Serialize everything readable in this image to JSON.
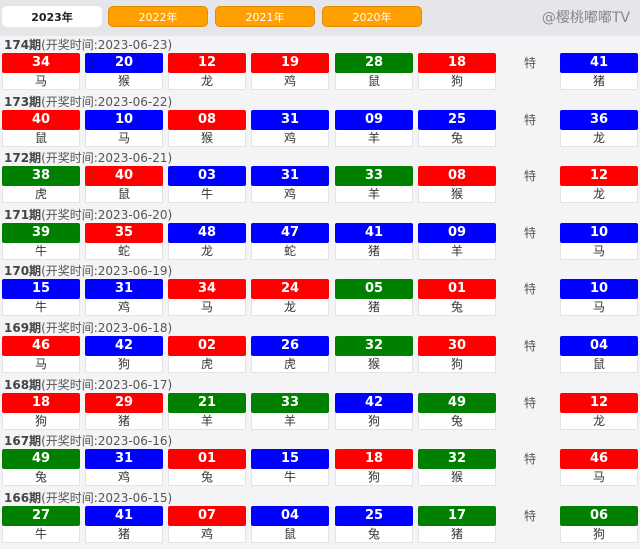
{
  "tabs": [
    "2023年",
    "2022年",
    "2021年",
    "2020年"
  ],
  "active_tab": 0,
  "special_label": "特",
  "colors": {
    "r": "#ff0000",
    "b": "#0000ff",
    "g": "#008000"
  },
  "draws": [
    {
      "issue": "174期",
      "time": "(开奖时间:2023-06-23)",
      "balls": [
        [
          "34",
          "r",
          "马"
        ],
        [
          "20",
          "b",
          "猴"
        ],
        [
          "12",
          "r",
          "龙"
        ],
        [
          "19",
          "r",
          "鸡"
        ],
        [
          "28",
          "g",
          "鼠"
        ],
        [
          "18",
          "r",
          "狗"
        ]
      ],
      "special": [
        "41",
        "b",
        "猪"
      ]
    },
    {
      "issue": "173期",
      "time": "(开奖时间:2023-06-22)",
      "balls": [
        [
          "40",
          "r",
          "鼠"
        ],
        [
          "10",
          "b",
          "马"
        ],
        [
          "08",
          "r",
          "猴"
        ],
        [
          "31",
          "b",
          "鸡"
        ],
        [
          "09",
          "b",
          "羊"
        ],
        [
          "25",
          "b",
          "兔"
        ]
      ],
      "special": [
        "36",
        "b",
        "龙"
      ]
    },
    {
      "issue": "172期",
      "time": "(开奖时间:2023-06-21)",
      "balls": [
        [
          "38",
          "g",
          "虎"
        ],
        [
          "40",
          "r",
          "鼠"
        ],
        [
          "03",
          "b",
          "牛"
        ],
        [
          "31",
          "b",
          "鸡"
        ],
        [
          "33",
          "g",
          "羊"
        ],
        [
          "08",
          "r",
          "猴"
        ]
      ],
      "special": [
        "12",
        "r",
        "龙"
      ]
    },
    {
      "issue": "171期",
      "time": "(开奖时间:2023-06-20)",
      "balls": [
        [
          "39",
          "g",
          "牛"
        ],
        [
          "35",
          "r",
          "蛇"
        ],
        [
          "48",
          "b",
          "龙"
        ],
        [
          "47",
          "b",
          "蛇"
        ],
        [
          "41",
          "b",
          "猪"
        ],
        [
          "09",
          "b",
          "羊"
        ]
      ],
      "special": [
        "10",
        "b",
        "马"
      ]
    },
    {
      "issue": "170期",
      "time": "(开奖时间:2023-06-19)",
      "balls": [
        [
          "15",
          "b",
          "牛"
        ],
        [
          "31",
          "b",
          "鸡"
        ],
        [
          "34",
          "r",
          "马"
        ],
        [
          "24",
          "r",
          "龙"
        ],
        [
          "05",
          "g",
          "猪"
        ],
        [
          "01",
          "r",
          "兔"
        ]
      ],
      "special": [
        "10",
        "b",
        "马"
      ]
    },
    {
      "issue": "169期",
      "time": "(开奖时间:2023-06-18)",
      "balls": [
        [
          "46",
          "r",
          "马"
        ],
        [
          "42",
          "b",
          "狗"
        ],
        [
          "02",
          "r",
          "虎"
        ],
        [
          "26",
          "b",
          "虎"
        ],
        [
          "32",
          "g",
          "猴"
        ],
        [
          "30",
          "r",
          "狗"
        ]
      ],
      "special": [
        "04",
        "b",
        "鼠"
      ]
    },
    {
      "issue": "168期",
      "time": "(开奖时间:2023-06-17)",
      "balls": [
        [
          "18",
          "r",
          "狗"
        ],
        [
          "29",
          "r",
          "猪"
        ],
        [
          "21",
          "g",
          "羊"
        ],
        [
          "33",
          "g",
          "羊"
        ],
        [
          "42",
          "b",
          "狗"
        ],
        [
          "49",
          "g",
          "兔"
        ]
      ],
      "special": [
        "12",
        "r",
        "龙"
      ]
    },
    {
      "issue": "167期",
      "time": "(开奖时间:2023-06-16)",
      "balls": [
        [
          "49",
          "g",
          "兔"
        ],
        [
          "31",
          "b",
          "鸡"
        ],
        [
          "01",
          "r",
          "兔"
        ],
        [
          "15",
          "b",
          "牛"
        ],
        [
          "18",
          "r",
          "狗"
        ],
        [
          "32",
          "g",
          "猴"
        ]
      ],
      "special": [
        "46",
        "r",
        "马"
      ]
    },
    {
      "issue": "166期",
      "time": "(开奖时间:2023-06-15)",
      "balls": [
        [
          "27",
          "g",
          "牛"
        ],
        [
          "41",
          "b",
          "猪"
        ],
        [
          "07",
          "r",
          "鸡"
        ],
        [
          "04",
          "b",
          "鼠"
        ],
        [
          "25",
          "b",
          "兔"
        ],
        [
          "17",
          "g",
          "猪"
        ]
      ],
      "special": [
        "06",
        "g",
        "狗"
      ]
    }
  ],
  "watermark": "@樱桃嘟嘟TV"
}
